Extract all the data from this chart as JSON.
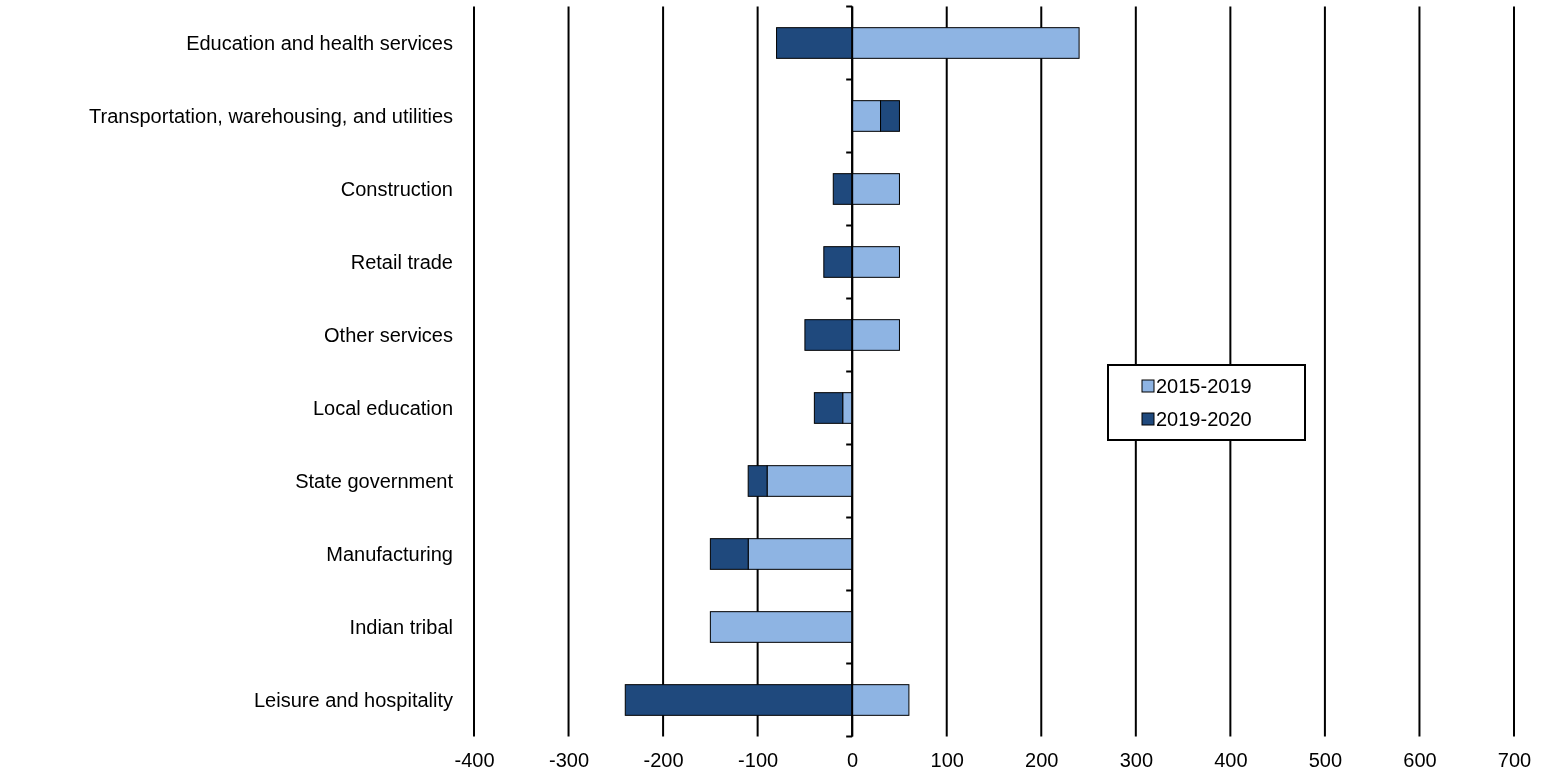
{
  "chart_data": {
    "type": "bar",
    "orientation": "horizontal",
    "stacked": true,
    "categories": [
      "Education and health services",
      "Transportation, warehousing, and utilities",
      "Construction",
      "Retail trade",
      "Other services",
      "Local education",
      "State government",
      "Manufacturing",
      "Indian tribal",
      "Leisure and hospitality"
    ],
    "series": [
      {
        "name": "2015-2019",
        "color": "#8eb4e3",
        "values": [
          240,
          30,
          50,
          50,
          50,
          -10,
          -90,
          -110,
          -150,
          60
        ]
      },
      {
        "name": "2019-2020",
        "color": "#1f497d",
        "values": [
          -80,
          20,
          -20,
          -30,
          -50,
          -30,
          -20,
          -40,
          0,
          -240
        ]
      }
    ],
    "xlim": [
      -400,
      700
    ],
    "xticks": [
      -400,
      -300,
      -200,
      -100,
      0,
      100,
      200,
      300,
      400,
      500,
      600,
      700
    ],
    "grid": "x",
    "legend": "right"
  }
}
